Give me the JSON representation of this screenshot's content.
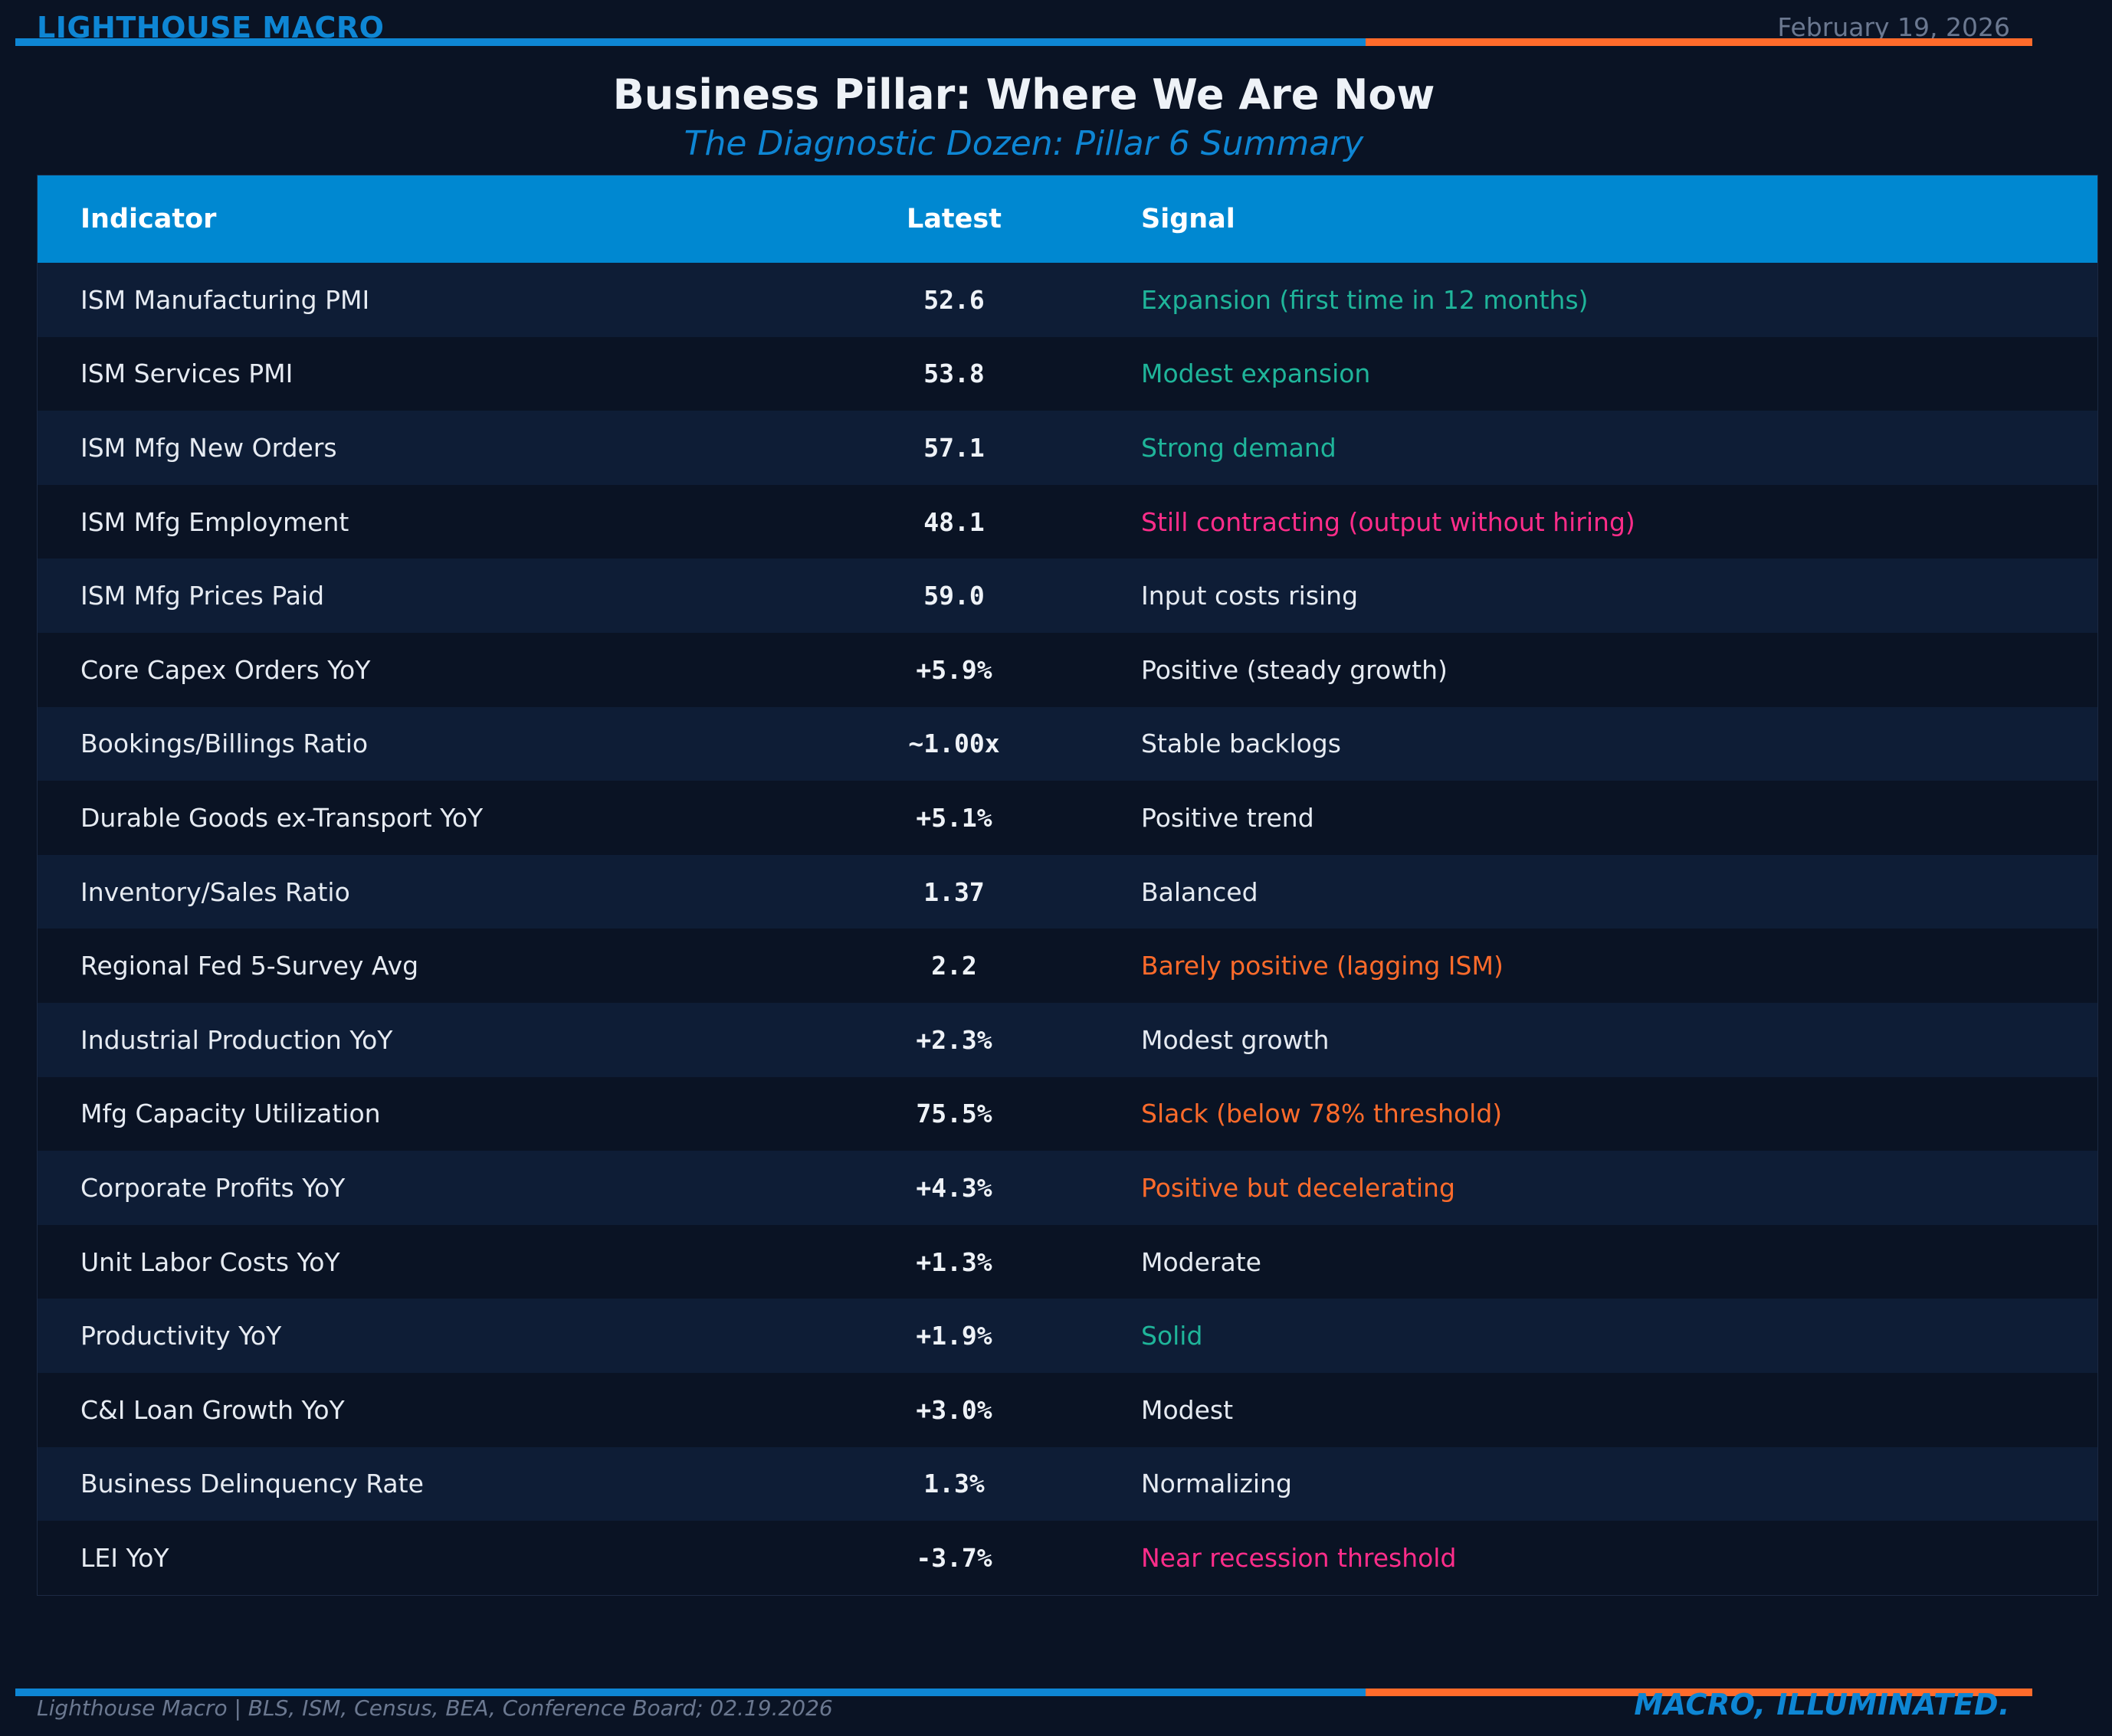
{
  "header": {
    "brand": "LIGHTHOUSE MACRO",
    "date": "February 19, 2026"
  },
  "title": "Business Pillar: Where We Are Now",
  "subtitle": "The Diagnostic Dozen: Pillar 6 Summary",
  "colors": {
    "accent_blue": "#0e86d4",
    "accent_orange": "#ff6b2b",
    "signal_green": "#1fb59a",
    "signal_pink": "#ff2d8a",
    "signal_orange": "#ff6b2b",
    "background": "#0a1324",
    "header_fill": "#0088d1"
  },
  "table": {
    "columns": [
      "Indicator",
      "Latest",
      "Signal"
    ],
    "rows": [
      {
        "indicator": "ISM Manufacturing PMI",
        "latest": "52.6",
        "signal": "Expansion (first time in 12 months)",
        "tone": "green"
      },
      {
        "indicator": "ISM Services PMI",
        "latest": "53.8",
        "signal": "Modest expansion",
        "tone": "green"
      },
      {
        "indicator": "ISM Mfg New Orders",
        "latest": "57.1",
        "signal": "Strong demand",
        "tone": "green"
      },
      {
        "indicator": "ISM Mfg Employment",
        "latest": "48.1",
        "signal": "Still contracting (output without hiring)",
        "tone": "pink"
      },
      {
        "indicator": "ISM Mfg Prices Paid",
        "latest": "59.0",
        "signal": "Input costs rising",
        "tone": "white"
      },
      {
        "indicator": "Core Capex Orders YoY",
        "latest": "+5.9%",
        "signal": "Positive (steady growth)",
        "tone": "white"
      },
      {
        "indicator": "Bookings/Billings Ratio",
        "latest": "~1.00x",
        "signal": "Stable backlogs",
        "tone": "white"
      },
      {
        "indicator": "Durable Goods ex-Transport YoY",
        "latest": "+5.1%",
        "signal": "Positive trend",
        "tone": "white"
      },
      {
        "indicator": "Inventory/Sales Ratio",
        "latest": "1.37",
        "signal": "Balanced",
        "tone": "white"
      },
      {
        "indicator": "Regional Fed 5-Survey Avg",
        "latest": "2.2",
        "signal": "Barely positive (lagging ISM)",
        "tone": "orange"
      },
      {
        "indicator": "Industrial Production YoY",
        "latest": "+2.3%",
        "signal": "Modest growth",
        "tone": "white"
      },
      {
        "indicator": "Mfg Capacity Utilization",
        "latest": "75.5%",
        "signal": "Slack (below 78% threshold)",
        "tone": "orange"
      },
      {
        "indicator": "Corporate Profits YoY",
        "latest": "+4.3%",
        "signal": "Positive but decelerating",
        "tone": "orange"
      },
      {
        "indicator": "Unit Labor Costs YoY",
        "latest": "+1.3%",
        "signal": "Moderate",
        "tone": "white"
      },
      {
        "indicator": "Productivity YoY",
        "latest": "+1.9%",
        "signal": "Solid",
        "tone": "green"
      },
      {
        "indicator": "C&I Loan Growth YoY",
        "latest": "+3.0%",
        "signal": "Modest",
        "tone": "white"
      },
      {
        "indicator": "Business Delinquency Rate",
        "latest": "1.3%",
        "signal": "Normalizing",
        "tone": "white"
      },
      {
        "indicator": "LEI YoY",
        "latest": "-3.7%",
        "signal": "Near recession threshold",
        "tone": "pink"
      }
    ]
  },
  "footer": {
    "source": "Lighthouse Macro | BLS, ISM, Census, BEA, Conference Board; 02.19.2026",
    "tagline": "MACRO, ILLUMINATED."
  }
}
